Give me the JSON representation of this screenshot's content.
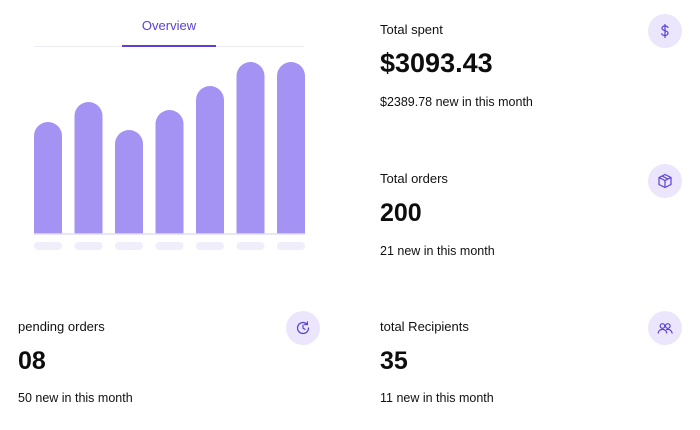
{
  "overview": {
    "tab_label": "Overview"
  },
  "chart_data": {
    "type": "bar",
    "values": [
      112,
      132,
      104,
      124,
      148,
      172,
      172
    ],
    "ylim": [
      0,
      180
    ]
  },
  "cards": {
    "total_spent": {
      "label": "Total spent",
      "value": "$3093.43",
      "sub": "$2389.78 new in this month",
      "icon": "dollar-icon"
    },
    "total_orders": {
      "label": "Total orders",
      "value": "200",
      "sub": "21 new in this month",
      "icon": "box-icon"
    },
    "pending_orders": {
      "label": "pending orders",
      "value": "08",
      "sub": "50 new in this month",
      "icon": "refresh-icon"
    },
    "total_recipients": {
      "label": "total Recipients",
      "value": "35",
      "sub": "11 new in this month",
      "icon": "users-icon"
    }
  },
  "colors": {
    "accent": "#5b3fd6",
    "bar": "#a593f3",
    "icon_bg": "#ebe6fb",
    "placeholder": "#f0eefb"
  }
}
